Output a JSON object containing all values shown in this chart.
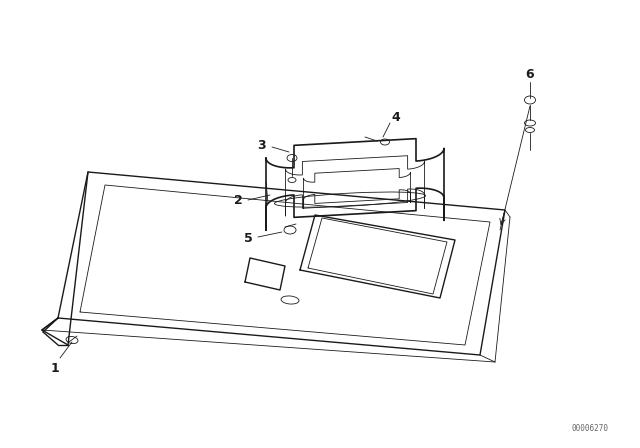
{
  "background_color": "#ffffff",
  "line_color": "#1a1a1a",
  "diagram_code": "00006270",
  "fig_width": 6.4,
  "fig_height": 4.48,
  "dpi": 100
}
